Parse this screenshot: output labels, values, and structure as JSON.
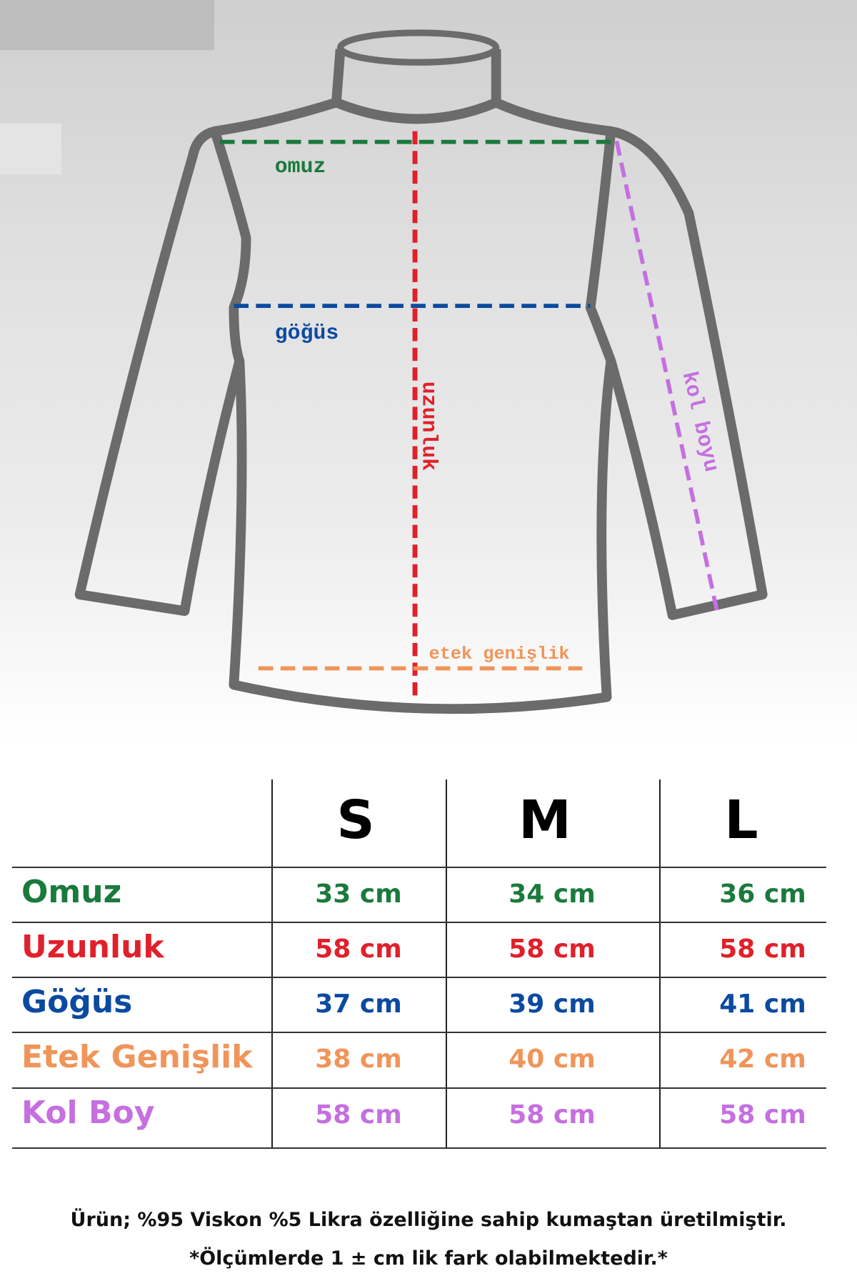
{
  "diagram": {
    "labels": {
      "omuz": "omuz",
      "gogus": "göğüs",
      "uzunluk": "uzunluk",
      "kol_boyu": "kol boyu",
      "etek": "etek genişlik"
    },
    "colors": {
      "omuz": "#1a7a3c",
      "uzunluk": "#e0202a",
      "gogus": "#0b4aa0",
      "etek": "#f0955a",
      "kol": "#c56fe0",
      "outline": "#6b6b6b"
    }
  },
  "table": {
    "sizes": [
      "S",
      "M",
      "L"
    ],
    "rows": [
      {
        "label": "Omuz",
        "color": "#1a7a3c",
        "values": [
          "33 cm",
          "34 cm",
          "36 cm"
        ]
      },
      {
        "label": "Uzunluk",
        "color": "#e0202a",
        "values": [
          "58 cm",
          "58 cm",
          "58 cm"
        ]
      },
      {
        "label": "Göğüs",
        "color": "#0b4aa0",
        "values": [
          "37 cm",
          "39 cm",
          "41 cm"
        ]
      },
      {
        "label": "Etek Genişlik",
        "color": "#f0955a",
        "values": [
          "38 cm",
          "40 cm",
          "42 cm"
        ]
      },
      {
        "label": "Kol Boy",
        "color": "#c56fe0",
        "values": [
          "58 cm",
          "58 cm",
          "58 cm"
        ]
      }
    ]
  },
  "footer": {
    "line1": "Ürün; %95 Viskon %5 Likra özelliğine sahip kumaştan üretilmiştir.",
    "line2": "*Ölçümlerde 1 ± cm lik fark olabilmektedir.*"
  }
}
